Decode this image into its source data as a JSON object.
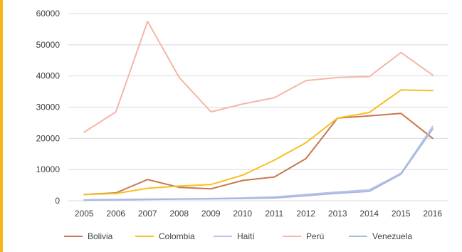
{
  "chart_data": {
    "type": "line",
    "title": "",
    "xlabel": "",
    "ylabel": "",
    "categories": [
      "2005",
      "2006",
      "2007",
      "2008",
      "2009",
      "2010",
      "2011",
      "2012",
      "2013",
      "2014",
      "2015",
      "2016"
    ],
    "ylim": [
      0,
      60000
    ],
    "yticks": [
      "0",
      "10000",
      "20000",
      "30000",
      "40000",
      "50000",
      "60000"
    ],
    "grid": true,
    "legend_position": "bottom",
    "series": [
      {
        "name": "Bolivia",
        "color": "#c8784f",
        "values": [
          2000,
          2500,
          6800,
          4300,
          3800,
          6500,
          7600,
          13500,
          26500,
          27200,
          28000,
          20000
        ]
      },
      {
        "name": "Colombia",
        "color": "#f5c11f",
        "values": [
          2000,
          2300,
          4000,
          4700,
          5200,
          8200,
          13000,
          18600,
          26500,
          28300,
          35500,
          35300
        ]
      },
      {
        "name": "Haití",
        "color": "#b7c2e6",
        "values": [
          300,
          400,
          500,
          600,
          700,
          900,
          1200,
          2000,
          2800,
          3500,
          8800,
          23800
        ]
      },
      {
        "name": "Perú",
        "color": "#f5b6a6",
        "values": [
          22000,
          28500,
          57500,
          39500,
          28500,
          31000,
          33000,
          38500,
          39500,
          39800,
          47500,
          40300
        ]
      },
      {
        "name": "Venezuela",
        "color": "#a8b8e0",
        "values": [
          200,
          300,
          400,
          500,
          600,
          700,
          900,
          1600,
          2400,
          3000,
          8500,
          23000
        ]
      }
    ]
  }
}
